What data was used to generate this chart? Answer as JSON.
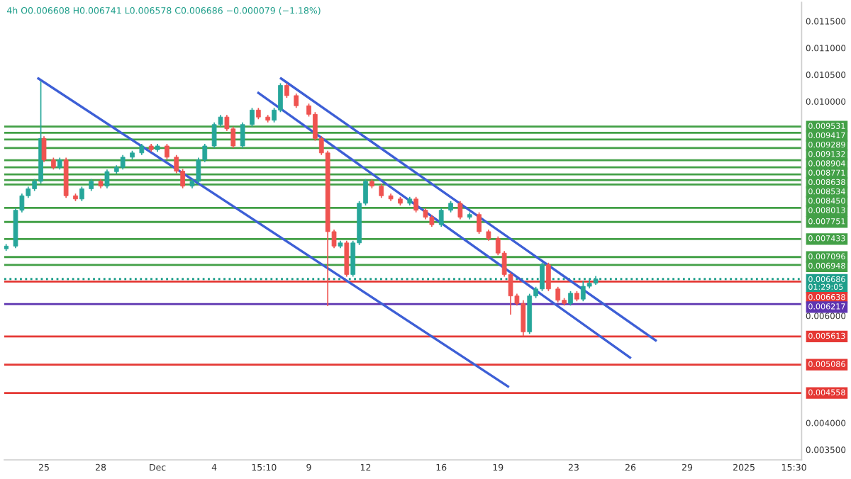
{
  "chart_data": {
    "type": "candlestick",
    "title": "4h O0.006608 H0.006741 L0.006578 C0.006686 −0.000079 (−1.18%)",
    "x": [
      "2024-11-23T00:00",
      "2024-11-23T12:00",
      "2024-11-23T20:00",
      "2024-11-24T04:00",
      "2024-11-24T12:00",
      "2024-11-24T20:00",
      "2024-11-25T00:00",
      "2024-11-25T12:00",
      "2024-11-25T20:00",
      "2024-11-26T04:00",
      "2024-11-26T16:00",
      "2024-11-27T00:00",
      "2024-11-27T12:00",
      "2024-11-28T00:00",
      "2024-11-28T08:00",
      "2024-11-28T20:00",
      "2024-11-29T04:00",
      "2024-11-29T16:00",
      "2024-11-30T04:00",
      "2024-11-30T16:00",
      "2024-12-01T00:00",
      "2024-12-01T12:00",
      "2024-12-02T00:00",
      "2024-12-02T08:00",
      "2024-12-02T20:00",
      "2024-12-03T04:00",
      "2024-12-03T12:00",
      "2024-12-04T00:00",
      "2024-12-04T08:00",
      "2024-12-04T16:00",
      "2024-12-05T00:00",
      "2024-12-05T12:00",
      "2024-12-06T00:00",
      "2024-12-06T08:00",
      "2024-12-06T20:00",
      "2024-12-07T04:00",
      "2024-12-07T12:00",
      "2024-12-07T20:00",
      "2024-12-08T08:00",
      "2024-12-09T00:00",
      "2024-12-09T08:00",
      "2024-12-09T16:00",
      "2024-12-10T00:00",
      "2024-12-10T08:00",
      "2024-12-10T16:00",
      "2024-12-11T00:00",
      "2024-12-11T08:00",
      "2024-12-11T16:00",
      "2024-12-12T00:00",
      "2024-12-12T08:00",
      "2024-12-12T20:00",
      "2024-12-13T08:00",
      "2024-12-13T20:00",
      "2024-12-14T08:00",
      "2024-12-14T16:00",
      "2024-12-15T04:00",
      "2024-12-15T12:00",
      "2024-12-16T00:00",
      "2024-12-16T12:00",
      "2024-12-17T00:00",
      "2024-12-17T12:00",
      "2024-12-18T00:00",
      "2024-12-18T12:00",
      "2024-12-19T00:00",
      "2024-12-19T08:00",
      "2024-12-19T16:00",
      "2024-12-20T00:00",
      "2024-12-20T08:00",
      "2024-12-20T16:00",
      "2024-12-21T00:00",
      "2024-12-21T08:00",
      "2024-12-21T16:00",
      "2024-12-22T04:00",
      "2024-12-22T12:00",
      "2024-12-22T20:00",
      "2024-12-23T04:00",
      "2024-12-23T12:00",
      "2024-12-23T20:00",
      "2024-12-24T04:00"
    ],
    "ohlc": [
      [
        0.00725,
        0.00734,
        0.00721,
        0.0073
      ],
      [
        0.0073,
        0.00801,
        0.00726,
        0.00797
      ],
      [
        0.00797,
        0.00828,
        0.00793,
        0.00824
      ],
      [
        0.00824,
        0.00841,
        0.0082,
        0.00837
      ],
      [
        0.00837,
        0.00855,
        0.00833,
        0.00851
      ],
      [
        0.00851,
        0.01038,
        0.00847,
        0.00931
      ],
      [
        0.00931,
        0.00935,
        0.00887,
        0.00891
      ],
      [
        0.00891,
        0.00895,
        0.00873,
        0.00877
      ],
      [
        0.00877,
        0.00895,
        0.00873,
        0.00891
      ],
      [
        0.00891,
        0.00895,
        0.0082,
        0.00824
      ],
      [
        0.00824,
        0.00828,
        0.00814,
        0.00818
      ],
      [
        0.00818,
        0.00841,
        0.00814,
        0.00837
      ],
      [
        0.00837,
        0.00855,
        0.00833,
        0.00851
      ],
      [
        0.00851,
        0.00855,
        0.00838,
        0.00842
      ],
      [
        0.00842,
        0.00873,
        0.00838,
        0.00869
      ],
      [
        0.00869,
        0.00881,
        0.00865,
        0.00877
      ],
      [
        0.00877,
        0.009,
        0.00873,
        0.00896
      ],
      [
        0.00896,
        0.00908,
        0.00892,
        0.00904
      ],
      [
        0.00904,
        0.00921,
        0.009,
        0.00917
      ],
      [
        0.00917,
        0.00921,
        0.00906,
        0.0091
      ],
      [
        0.0091,
        0.00921,
        0.00906,
        0.00917
      ],
      [
        0.00917,
        0.00921,
        0.00892,
        0.00896
      ],
      [
        0.00896,
        0.009,
        0.00866,
        0.0087
      ],
      [
        0.0087,
        0.00874,
        0.00838,
        0.00842
      ],
      [
        0.00842,
        0.00855,
        0.00838,
        0.00851
      ],
      [
        0.00851,
        0.00895,
        0.00847,
        0.00891
      ],
      [
        0.00891,
        0.00921,
        0.00887,
        0.00917
      ],
      [
        0.00917,
        0.00961,
        0.00913,
        0.00957
      ],
      [
        0.00957,
        0.00975,
        0.00953,
        0.00971
      ],
      [
        0.00971,
        0.00975,
        0.00945,
        0.00949
      ],
      [
        0.00949,
        0.00953,
        0.00913,
        0.00917
      ],
      [
        0.00917,
        0.00961,
        0.00913,
        0.00957
      ],
      [
        0.00957,
        0.00988,
        0.00953,
        0.00984
      ],
      [
        0.00984,
        0.00988,
        0.00967,
        0.00971
      ],
      [
        0.00971,
        0.00975,
        0.00961,
        0.00965
      ],
      [
        0.00965,
        0.00988,
        0.00961,
        0.00984
      ],
      [
        0.00984,
        0.01034,
        0.0098,
        0.0103
      ],
      [
        0.0103,
        0.01034,
        0.01007,
        0.01011
      ],
      [
        0.01011,
        0.01015,
        0.00988,
        0.00992
      ],
      [
        0.00992,
        0.00996,
        0.00972,
        0.00976
      ],
      [
        0.00976,
        0.0098,
        0.00927,
        0.00931
      ],
      [
        0.00931,
        0.00935,
        0.009,
        0.00904
      ],
      [
        0.00904,
        0.00908,
        0.00618,
        0.00757
      ],
      [
        0.00757,
        0.00761,
        0.00726,
        0.0073
      ],
      [
        0.0073,
        0.0074,
        0.00726,
        0.00736
      ],
      [
        0.00736,
        0.0074,
        0.00673,
        0.00677
      ],
      [
        0.00677,
        0.0074,
        0.00673,
        0.00736
      ],
      [
        0.00736,
        0.00814,
        0.00732,
        0.0081
      ],
      [
        0.0081,
        0.00855,
        0.00806,
        0.00851
      ],
      [
        0.00851,
        0.00855,
        0.00838,
        0.00842
      ],
      [
        0.00842,
        0.00846,
        0.0082,
        0.00824
      ],
      [
        0.00824,
        0.00828,
        0.00814,
        0.00818
      ],
      [
        0.00818,
        0.00822,
        0.00806,
        0.0081
      ],
      [
        0.0081,
        0.00822,
        0.00806,
        0.00818
      ],
      [
        0.00818,
        0.00822,
        0.00793,
        0.00797
      ],
      [
        0.00797,
        0.00801,
        0.0078,
        0.00784
      ],
      [
        0.00784,
        0.00788,
        0.00766,
        0.0077
      ],
      [
        0.0077,
        0.00801,
        0.00766,
        0.00797
      ],
      [
        0.00797,
        0.00814,
        0.00793,
        0.0081
      ],
      [
        0.0081,
        0.00814,
        0.0078,
        0.00784
      ],
      [
        0.00784,
        0.00793,
        0.0078,
        0.00789
      ],
      [
        0.00789,
        0.00793,
        0.00753,
        0.00757
      ],
      [
        0.00757,
        0.00761,
        0.0074,
        0.00744
      ],
      [
        0.00744,
        0.00748,
        0.00713,
        0.00717
      ],
      [
        0.00717,
        0.00721,
        0.00673,
        0.00677
      ],
      [
        0.00677,
        0.00681,
        0.00602,
        0.00637
      ],
      [
        0.00637,
        0.00641,
        0.00619,
        0.00623
      ],
      [
        0.00623,
        0.00629,
        0.00562,
        0.0057
      ],
      [
        0.0057,
        0.00641,
        0.00566,
        0.00637
      ],
      [
        0.00637,
        0.00654,
        0.00633,
        0.0065
      ],
      [
        0.0065,
        0.00699,
        0.00646,
        0.00695
      ],
      [
        0.00695,
        0.00699,
        0.00646,
        0.0065
      ],
      [
        0.0065,
        0.00654,
        0.00625,
        0.00629
      ],
      [
        0.00629,
        0.00633,
        0.00619,
        0.00623
      ],
      [
        0.00623,
        0.00646,
        0.00619,
        0.00642
      ],
      [
        0.00642,
        0.00646,
        0.00627,
        0.00631
      ],
      [
        0.00631,
        0.00665,
        0.00627,
        0.00655
      ],
      [
        0.00655,
        0.00668,
        0.00651,
        0.006608
      ],
      [
        0.006608,
        0.006741,
        0.006578,
        0.006686
      ]
    ],
    "colors": [
      "#26a69a",
      "#26a69a",
      "#26a69a",
      "#26a69a",
      "#26a69a",
      "#26a69a",
      "#ef5350",
      "#ef5350",
      "#26a69a",
      "#ef5350",
      "#ef5350",
      "#26a69a",
      "#26a69a",
      "#ef5350",
      "#26a69a",
      "#26a69a",
      "#26a69a",
      "#26a69a",
      "#26a69a",
      "#ef5350",
      "#26a69a",
      "#ef5350",
      "#ef5350",
      "#ef5350",
      "#26a69a",
      "#26a69a",
      "#26a69a",
      "#26a69a",
      "#26a69a",
      "#ef5350",
      "#ef5350",
      "#26a69a",
      "#26a69a",
      "#ef5350",
      "#ef5350",
      "#26a69a",
      "#26a69a",
      "#ef5350",
      "#ef5350",
      "#ef5350",
      "#ef5350",
      "#ef5350",
      "#ef5350",
      "#ef5350",
      "#26a69a",
      "#ef5350",
      "#26a69a",
      "#26a69a",
      "#26a69a",
      "#ef5350",
      "#ef5350",
      "#ef5350",
      "#ef5350",
      "#26a69a",
      "#ef5350",
      "#ef5350",
      "#ef5350",
      "#26a69a",
      "#26a69a",
      "#ef5350",
      "#26a69a",
      "#ef5350",
      "#ef5350",
      "#ef5350",
      "#ef5350",
      "#ef5350",
      "#ef5350",
      "#ef5350",
      "#26a69a",
      "#26a69a",
      "#26a69a",
      "#ef5350",
      "#ef5350",
      "#ef5350",
      "#26a69a",
      "#ef5350",
      "#26a69a",
      "#26a69a",
      "#26a69a"
    ],
    "series": [
      {
        "type": "line",
        "color": "#3d5fd6",
        "x": [
          "2024-11-24T16:48",
          "2024-12-19T12:43"
        ],
        "values": [
          0.01043,
          0.00468
        ]
      },
      {
        "type": "line",
        "color": "#3d5fd6",
        "x": [
          "2024-12-06T08:00",
          "2024-12-25T23:30"
        ],
        "values": [
          0.01016,
          0.00522
        ]
      },
      {
        "type": "line",
        "color": "#3d5fd6",
        "x": [
          "2024-12-07T12:43",
          "2024-12-27T08:00"
        ],
        "values": [
          0.01043,
          0.00554
        ]
      }
    ],
    "ref_lines": [
      {
        "axis": "y",
        "value": 0.009531,
        "label": "0.009531",
        "color": "#43a047"
      },
      {
        "axis": "y",
        "value": 0.009417,
        "label": "0.009417",
        "color": "#43a047"
      },
      {
        "axis": "y",
        "value": 0.009289,
        "label": "0.009289",
        "color": "#43a047"
      },
      {
        "axis": "y",
        "value": 0.009132,
        "label": "0.009132",
        "color": "#43a047"
      },
      {
        "axis": "y",
        "value": 0.008904,
        "label": "0.008904",
        "color": "#43a047"
      },
      {
        "axis": "y",
        "value": 0.008771,
        "label": "0.008771",
        "color": "#43a047"
      },
      {
        "axis": "y",
        "value": 0.008638,
        "label": "0.008638",
        "color": "#43a047"
      },
      {
        "axis": "y",
        "value": 0.008534,
        "label": "0.008534",
        "color": "#43a047"
      },
      {
        "axis": "y",
        "value": 0.00845,
        "label": "0.008450",
        "color": "#43a047"
      },
      {
        "axis": "y",
        "value": 0.008013,
        "label": "0.008013",
        "color": "#43a047"
      },
      {
        "axis": "y",
        "value": 0.007751,
        "label": "0.007751",
        "color": "#43a047"
      },
      {
        "axis": "y",
        "value": 0.007433,
        "label": "0.007433",
        "color": "#43a047"
      },
      {
        "axis": "y",
        "value": 0.007096,
        "label": "0.007096",
        "color": "#43a047"
      },
      {
        "axis": "y",
        "value": 0.006948,
        "label": "0.006948",
        "color": "#43a047"
      },
      {
        "axis": "y",
        "value": 0.006686,
        "label": "0.006686\n01:29:05",
        "color": "#1e9e8a",
        "line_style": "dotted"
      },
      {
        "axis": "y",
        "value": 0.006638,
        "label": "0.006638",
        "color": "#e53935"
      },
      {
        "axis": "y",
        "value": 0.006217,
        "label": "0.006217",
        "color": "#5e35b1"
      },
      {
        "axis": "y",
        "value": 0.005613,
        "label": "0.005613",
        "color": "#e53935"
      },
      {
        "axis": "y",
        "value": 0.005086,
        "label": "0.005086",
        "color": "#e53935"
      },
      {
        "axis": "y",
        "value": 0.004558,
        "label": "0.004558",
        "color": "#e53935"
      }
    ],
    "xlim": [
      "2024-11-22T21:36",
      "2025-01-04T01:12"
    ],
    "xticks": [
      {
        "value": "2024-11-25",
        "label": "25"
      },
      {
        "value": "2024-11-28",
        "label": "28"
      },
      {
        "value": "2024-12-01",
        "label": "Dec"
      },
      {
        "value": "2024-12-04",
        "label": "4"
      },
      {
        "value": "2024-12-06T15:10",
        "label": "15:10"
      },
      {
        "value": "2024-12-09",
        "label": "9"
      },
      {
        "value": "2024-12-12",
        "label": "12"
      },
      {
        "value": "2024-12-16",
        "label": "16"
      },
      {
        "value": "2024-12-19",
        "label": "19"
      },
      {
        "value": "2024-12-23",
        "label": "23"
      },
      {
        "value": "2024-12-26",
        "label": "26"
      },
      {
        "value": "2024-12-29",
        "label": "29"
      },
      {
        "value": "2025-01-01",
        "label": "2025"
      },
      {
        "value": "2025-01-03T15:30",
        "label": "15:30"
      }
    ],
    "ylim": [
      0.00331,
      0.01185
    ],
    "yticks": [
      {
        "value": 0.0035,
        "label": "0.003500"
      },
      {
        "value": 0.004,
        "label": "0.004000"
      },
      {
        "value": 0.006,
        "label": "0.006000"
      },
      {
        "value": 0.01,
        "label": "0.010000"
      },
      {
        "value": 0.0105,
        "label": "0.010500"
      },
      {
        "value": 0.011,
        "label": "0.011000"
      },
      {
        "value": 0.0115,
        "label": "0.011500"
      }
    ],
    "grid": false
  }
}
